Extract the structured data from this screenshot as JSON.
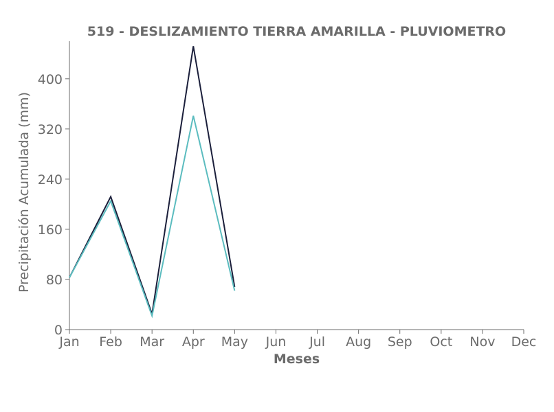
{
  "chart_data": {
    "type": "line",
    "title": "519 - DESLIZAMIENTO TIERRA AMARILLA - PLUVIOMETRO",
    "xlabel": "Meses",
    "ylabel": "Precipitación Acumulada (mm)",
    "categories": [
      "Jan",
      "Feb",
      "Mar",
      "Apr",
      "May",
      "Jun",
      "Jul",
      "Aug",
      "Sep",
      "Oct",
      "Nov",
      "Dec"
    ],
    "yticks": [
      0,
      80,
      160,
      240,
      320,
      400
    ],
    "ylim": [
      0,
      460
    ],
    "grid": false,
    "series": [
      {
        "color": "#1b1f3b",
        "values": [
          83,
          212,
          25,
          452,
          68,
          null,
          null,
          null,
          null,
          null,
          null,
          null
        ]
      },
      {
        "color": "#5bbcbf",
        "values": [
          83,
          205,
          22,
          341,
          62,
          null,
          null,
          null,
          null,
          null,
          null,
          null
        ]
      }
    ]
  }
}
